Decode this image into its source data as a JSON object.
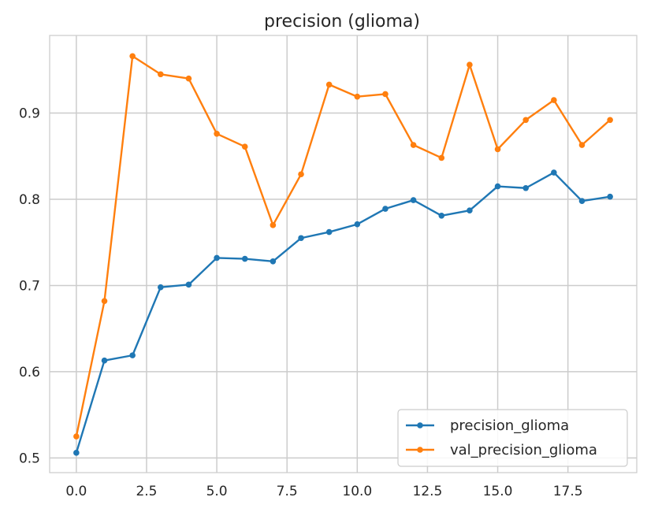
{
  "chart_data": {
    "type": "line",
    "title": "precision (glioma)",
    "xlabel": "",
    "ylabel": "",
    "xlim": [
      -0.95,
      19.95
    ],
    "ylim": [
      0.483,
      0.99
    ],
    "x_ticks": [
      0.0,
      2.5,
      5.0,
      7.5,
      10.0,
      12.5,
      15.0,
      17.5
    ],
    "x_tick_labels": [
      "0.0",
      "2.5",
      "5.0",
      "7.5",
      "10.0",
      "12.5",
      "15.0",
      "17.5"
    ],
    "y_ticks": [
      0.5,
      0.6,
      0.7,
      0.8,
      0.9
    ],
    "y_tick_labels": [
      "0.5",
      "0.6",
      "0.7",
      "0.8",
      "0.9"
    ],
    "grid": true,
    "legend_position": "lower-right",
    "x": [
      0,
      1,
      2,
      3,
      4,
      5,
      6,
      7,
      8,
      9,
      10,
      11,
      12,
      13,
      14,
      15,
      16,
      17,
      18,
      19
    ],
    "series": [
      {
        "name": "precision_glioma",
        "color": "#1f77b4",
        "values": [
          0.506,
          0.613,
          0.619,
          0.698,
          0.701,
          0.732,
          0.731,
          0.728,
          0.755,
          0.762,
          0.771,
          0.789,
          0.799,
          0.781,
          0.787,
          0.815,
          0.813,
          0.831,
          0.798,
          0.803
        ]
      },
      {
        "name": "val_precision_glioma",
        "color": "#ff7f0e",
        "values": [
          0.525,
          0.682,
          0.966,
          0.945,
          0.94,
          0.876,
          0.861,
          0.77,
          0.829,
          0.933,
          0.919,
          0.922,
          0.863,
          0.848,
          0.956,
          0.858,
          0.892,
          0.915,
          0.863,
          0.892
        ]
      }
    ]
  }
}
